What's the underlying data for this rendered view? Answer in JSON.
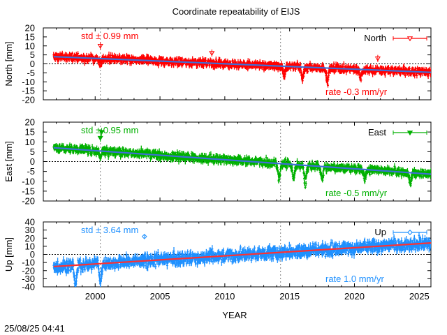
{
  "title": "Coordinate repeatability of EIJS",
  "xlabel": "YEAR",
  "timestamp": "25/08/25 04:41",
  "chart_data": [
    {
      "type": "scatter",
      "name": "North",
      "ylabel": "North [mm]",
      "legend": "North",
      "legend_position": "top-right",
      "std_label": "std ± 0.99 mm",
      "rate_label": "rate -0.3 mm/yr",
      "color": "#ff0000",
      "trend_color": "#3f6fd8",
      "marker": "triangle-down-open",
      "xlim": [
        1996.0,
        2025.9
      ],
      "ylim": [
        -20,
        20
      ],
      "yticks": [
        -20,
        -15,
        -10,
        -5,
        0,
        5,
        10,
        15,
        20
      ],
      "xticks": [
        2000,
        2005,
        2010,
        2015,
        2020,
        2025
      ],
      "data_range": [
        1996.8,
        2025.9
      ],
      "trend": {
        "start": 4.0,
        "slope": -0.3
      },
      "scatter_std": 0.99,
      "error_bar": 1.4,
      "breaks": [
        2000.4,
        2014.3
      ],
      "dips": [
        [
          2000.4,
          -4.0
        ],
        [
          2014.6,
          -6.0
        ],
        [
          2016.0,
          -8.0
        ],
        [
          2017.9,
          -9.0
        ],
        [
          2020.5,
          -5.0
        ]
      ],
      "spikes": [
        [
          2000.4,
          10.0
        ],
        [
          2009.0,
          6.0
        ],
        [
          2021.8,
          3.0
        ]
      ]
    },
    {
      "type": "scatter",
      "name": "East",
      "ylabel": "East [mm]",
      "legend": "East",
      "legend_position": "top-right",
      "std_label": "std ± 0.95 mm",
      "rate_label": "rate -0.5 mm/yr",
      "color": "#00b000",
      "trend_color": "#3f6fd8",
      "marker": "triangle-down-filled",
      "xlim": [
        1996.0,
        2025.9
      ],
      "ylim": [
        -20,
        20
      ],
      "yticks": [
        -20,
        -15,
        -10,
        -5,
        0,
        5,
        10,
        15,
        20
      ],
      "xticks": [
        2000,
        2005,
        2010,
        2015,
        2020,
        2025
      ],
      "data_range": [
        1996.8,
        2025.9
      ],
      "trend": {
        "start": 7.0,
        "slope": -0.46
      },
      "scatter_std": 0.95,
      "error_bar": 1.3,
      "breaks": [
        2000.4,
        2014.3
      ],
      "dips": [
        [
          2000.4,
          -3.0
        ],
        [
          2014.2,
          -10.0
        ],
        [
          2015.3,
          -9.0
        ],
        [
          2016.2,
          -11.0
        ],
        [
          2017.5,
          -8.0
        ],
        [
          2020.8,
          -6.0
        ],
        [
          2024.3,
          -7.0
        ]
      ],
      "spikes": [
        [
          2000.4,
          12.0
        ],
        [
          2000.5,
          15.0
        ]
      ]
    },
    {
      "type": "scatter",
      "name": "Up",
      "ylabel": "Up [mm]",
      "legend": "Up",
      "legend_position": "top-right",
      "std_label": "std ± 3.64 mm",
      "rate_label": "rate  1.0 mm/yr",
      "color": "#1e90ff",
      "trend_color": "#ff3030",
      "marker": "diamond-open",
      "xlim": [
        1996.0,
        2025.9
      ],
      "ylim": [
        -40,
        40
      ],
      "yticks": [
        -40,
        -30,
        -20,
        -10,
        0,
        10,
        20,
        30,
        40
      ],
      "xticks": [
        2000,
        2005,
        2010,
        2015,
        2020,
        2025
      ],
      "data_range": [
        1996.8,
        2025.9
      ],
      "trend": {
        "start": -15.0,
        "slope": 1.0
      },
      "scatter_std": 3.64,
      "error_bar": 4.0,
      "breaks": [
        2000.4,
        2014.3
      ],
      "dips": [
        [
          1998.5,
          -30.0
        ],
        [
          2000.4,
          -28.0
        ]
      ],
      "spikes": [
        [
          2003.8,
          22.0
        ]
      ]
    }
  ]
}
